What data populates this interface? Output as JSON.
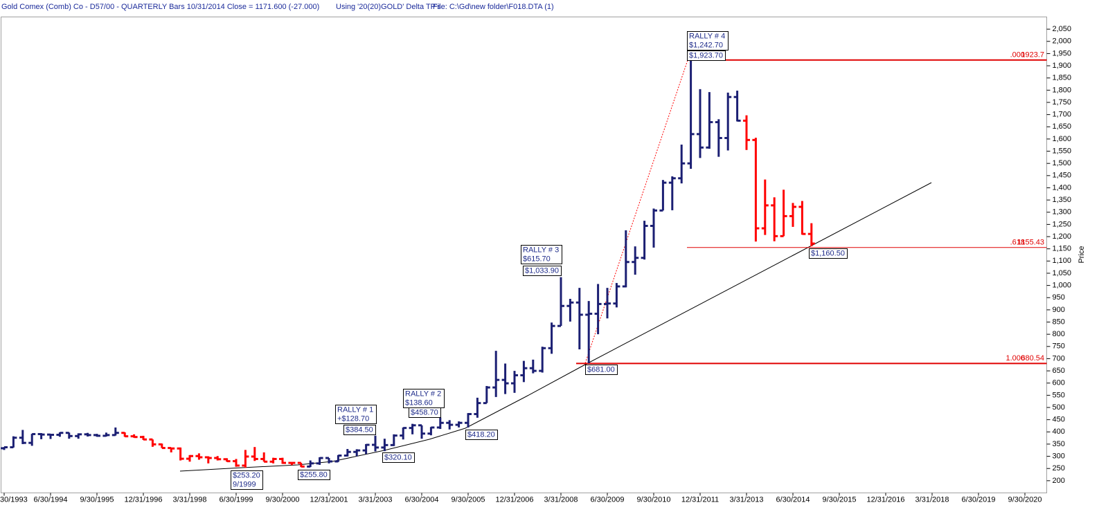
{
  "chart_data": {
    "type": "ohlc",
    "title": "Gold Comex (Comb) Co - D57/00  -  QUARTERLY Bars  10/31/2014 Close = 1171.600 (-27.000)",
    "subtitle": "Using '20(20)GOLD' Delta TP's",
    "file": "File: C:\\Gd\\new folder\\F018.DTA (1)",
    "y_label": "Price",
    "categories": [
      "30/1993",
      null,
      null,
      null,
      null,
      "6/30/1994",
      null,
      null,
      null,
      null,
      "9/30/1995",
      null,
      null,
      null,
      null,
      "12/31/1996",
      null,
      null,
      null,
      null,
      "3/31/1998",
      null,
      null,
      null,
      null,
      "6/30/1999",
      null,
      null,
      null,
      null,
      "9/30/2000",
      null,
      null,
      null,
      null,
      "12/31/2001",
      null,
      null,
      null,
      null,
      "3/31/2003",
      null,
      null,
      null,
      null,
      "6/30/2004",
      null,
      null,
      null,
      null,
      "9/30/2005",
      null,
      null,
      null,
      null,
      "12/31/2006",
      null,
      null,
      null,
      null,
      "3/31/2008",
      null,
      null,
      null,
      null,
      "6/30/2009",
      null,
      null,
      null,
      null,
      "9/30/2010",
      null,
      null,
      null,
      null,
      "12/31/2011",
      null,
      null,
      null,
      null,
      "3/31/2013",
      null,
      null,
      null,
      null,
      "6/30/2014",
      null,
      null,
      null,
      null,
      "9/30/2015",
      null,
      null,
      null,
      null,
      "12/31/2016",
      null,
      null,
      null,
      null,
      "3/31/2018",
      null,
      null,
      null,
      null,
      "6/30/2019",
      null,
      null,
      null,
      null,
      "9/30/2020"
    ],
    "open": [
      333,
      337,
      376,
      355,
      391,
      389,
      388,
      396,
      383,
      390,
      387,
      384,
      387,
      396,
      382,
      379,
      369,
      349,
      334,
      332,
      290,
      301,
      296,
      293,
      288,
      280,
      262,
      299,
      289,
      278,
      289,
      273,
      273,
      258,
      271,
      293,
      279,
      303,
      318,
      324,
      347,
      336,
      346,
      385,
      416,
      427,
      393,
      418,
      437,
      429,
      437,
      473,
      518,
      582,
      613,
      599,
      632,
      661,
      650,
      743,
      834,
      916,
      930,
      880,
      884,
      924,
      926,
      996,
      1096,
      1113,
      1244,
      1307,
      1421,
      1439,
      1500,
      1620,
      1565,
      1669,
      1604,
      1772,
      1675,
      1596,
      1234,
      1328,
      1202,
      1284,
      1322,
      1211,
      null,
      null,
      null,
      null,
      null,
      null,
      null,
      null,
      null,
      null,
      null,
      null,
      null,
      null,
      null,
      null,
      null,
      null,
      null,
      null,
      null,
      null,
      null
    ],
    "high": [
      338,
      382,
      408,
      392,
      395,
      391,
      398,
      397,
      394,
      396,
      392,
      397,
      418,
      398,
      390,
      384,
      369,
      352,
      335,
      336,
      305,
      312,
      300,
      301,
      292,
      289,
      326,
      338,
      316,
      294,
      294,
      275,
      273,
      283,
      296,
      293,
      305,
      330,
      329,
      350,
      384.5,
      372,
      390,
      418,
      433,
      427,
      420,
      458.7,
      448,
      443,
      477,
      540,
      588,
      732,
      680,
      650,
      691,
      696,
      749,
      848,
      1033.9,
      945,
      990,
      936,
      1006,
      990,
      1010,
      1226,
      1160,
      1265,
      1315,
      1432,
      1447,
      1577,
      1923.7,
      1804,
      1792,
      1681,
      1790,
      1798,
      1697,
      1605,
      1434,
      1361,
      1392,
      1338,
      1346,
      1255,
      null,
      null,
      null,
      null,
      null,
      null,
      null,
      null,
      null,
      null,
      null,
      null,
      null,
      null,
      null,
      null,
      null,
      null,
      null,
      null,
      null,
      null,
      null
    ],
    "low": [
      326,
      336,
      350,
      343,
      370,
      371,
      380,
      372,
      372,
      381,
      380,
      381,
      385,
      380,
      376,
      367,
      339,
      334,
      316,
      283,
      278,
      286,
      271,
      283,
      278,
      257,
      253.2,
      281,
      278,
      271,
      269,
      264,
      255.8,
      256,
      265,
      271,
      277,
      299,
      300,
      309,
      320.1,
      321,
      342,
      369,
      390,
      372,
      386,
      412,
      410,
      418.2,
      418,
      458,
      518,
      543,
      555,
      560,
      604,
      640,
      643,
      720,
      834,
      852,
      738,
      681,
      800,
      865,
      910,
      992,
      1044,
      1106,
      1155,
      1307,
      1308,
      1418,
      1478,
      1522,
      1560,
      1527,
      1553,
      1672,
      1555,
      1180,
      1207,
      1181,
      1202,
      1240,
      1208,
      1160.5,
      null,
      null,
      null,
      null,
      null,
      null,
      null,
      null,
      null,
      null,
      null,
      null,
      null,
      null,
      null,
      null,
      null,
      null,
      null,
      null,
      null,
      null,
      null
    ],
    "close": [
      337,
      376,
      355,
      391,
      389,
      388,
      396,
      383,
      390,
      387,
      384,
      387,
      396,
      382,
      379,
      369,
      349,
      334,
      332,
      290,
      301,
      296,
      293,
      288,
      280,
      262,
      299,
      289,
      278,
      289,
      273,
      273,
      258,
      271,
      293,
      279,
      303,
      318,
      324,
      347,
      336,
      346,
      385,
      416,
      427,
      393,
      418,
      437,
      429,
      437,
      473,
      518,
      582,
      613,
      599,
      632,
      661,
      650,
      743,
      834,
      916,
      930,
      880,
      884,
      924,
      926,
      996,
      1096,
      1113,
      1244,
      1307,
      1421,
      1439,
      1500,
      1620,
      1565,
      1669,
      1604,
      1772,
      1675,
      1596,
      1234,
      1328,
      1202,
      1284,
      1322,
      1211,
      1171.6,
      null,
      null,
      null,
      null,
      null,
      null,
      null,
      null,
      null,
      null,
      null,
      null,
      null,
      null,
      null,
      null,
      null,
      null,
      null,
      null,
      null,
      null,
      null
    ],
    "bar_colors": [
      "#1b1f73",
      "#1b1f73",
      "#1b1f73",
      "#1b1f73",
      "#1b1f73",
      "#1b1f73",
      "#1b1f73",
      "#1b1f73",
      "#1b1f73",
      "#1b1f73",
      "#1b1f73",
      "#1b1f73",
      "#1b1f73",
      "#ff0000",
      "#ff0000",
      "#ff0000",
      "#ff0000",
      "#ff0000",
      "#ff0000",
      "#ff0000",
      "#ff0000",
      "#ff0000",
      "#ff0000",
      "#ff0000",
      "#ff0000",
      "#ff0000",
      "#ff0000",
      "#ff0000",
      "#ff0000",
      "#ff0000",
      "#ff0000",
      "#ff0000",
      "#ff0000",
      "#1b1f73",
      "#1b1f73",
      "#1b1f73",
      "#1b1f73",
      "#1b1f73",
      "#1b1f73",
      "#1b1f73",
      "#1b1f73",
      "#1b1f73",
      "#1b1f73",
      "#1b1f73",
      "#1b1f73",
      "#1b1f73",
      "#1b1f73",
      "#1b1f73",
      "#1b1f73",
      "#1b1f73",
      "#1b1f73",
      "#1b1f73",
      "#1b1f73",
      "#1b1f73",
      "#1b1f73",
      "#1b1f73",
      "#1b1f73",
      "#1b1f73",
      "#1b1f73",
      "#1b1f73",
      "#1b1f73",
      "#1b1f73",
      "#1b1f73",
      "#1b1f73",
      "#1b1f73",
      "#1b1f73",
      "#1b1f73",
      "#1b1f73",
      "#1b1f73",
      "#1b1f73",
      "#1b1f73",
      "#1b1f73",
      "#1b1f73",
      "#1b1f73",
      "#1b1f73",
      "#1b1f73",
      "#1b1f73",
      "#1b1f73",
      "#1b1f73",
      "#1b1f73",
      "#ff0000",
      "#ff0000",
      "#ff0000",
      "#ff0000",
      "#ff0000",
      "#ff0000",
      "#ff0000",
      "#ff0000",
      null,
      null,
      null,
      null,
      null,
      null,
      null,
      null,
      null,
      null,
      null,
      null,
      null,
      null,
      null,
      null,
      null,
      null,
      null,
      null,
      null,
      null,
      null
    ],
    "ylim": [
      150,
      2100
    ],
    "yticks": [
      200,
      250,
      300,
      350,
      400,
      450,
      500,
      550,
      600,
      650,
      700,
      750,
      800,
      850,
      900,
      950,
      {
        "value": 1000,
        "label": "1,000"
      },
      {
        "value": 1050,
        "label": "1,050"
      },
      {
        "value": 1100,
        "label": "1,100"
      },
      {
        "value": 1150,
        "label": "1,150"
      },
      {
        "value": 1200,
        "label": "1,200"
      },
      {
        "value": 1250,
        "label": "1,250"
      },
      {
        "value": 1300,
        "label": "1,300"
      },
      {
        "value": 1350,
        "label": "1,350"
      },
      {
        "value": 1400,
        "label": "1,400"
      },
      {
        "value": 1450,
        "label": "1,450"
      },
      {
        "value": 1500,
        "label": "1,500"
      },
      {
        "value": 1550,
        "label": "1,550"
      },
      {
        "value": 1600,
        "label": "1,600"
      },
      {
        "value": 1650,
        "label": "1,650"
      },
      {
        "value": 1700,
        "label": "1,700"
      },
      {
        "value": 1750,
        "label": "1,750"
      },
      {
        "value": 1800,
        "label": "1,800"
      },
      {
        "value": 1850,
        "label": "1,850"
      },
      {
        "value": 1900,
        "label": "1,900"
      },
      {
        "value": 1950,
        "label": "1,950"
      },
      {
        "value": 2000,
        "label": "2,000"
      },
      {
        "value": 2050,
        "label": "2,050"
      }
    ],
    "fib_levels": [
      {
        "ratio": ".000",
        "value": 1923.7
      },
      {
        "ratio": ".618",
        "value": 1155.43
      },
      {
        "ratio": "1.000",
        "value": 680.54
      }
    ],
    "annotations": [
      [
        "RALLY # 1",
        "+$128.70"
      ],
      [
        "$384.50"
      ],
      [
        "$253.20",
        "9/1999"
      ],
      [
        "$255.80"
      ],
      [
        "$320.10"
      ],
      [
        "RALLY # 2",
        "$138.60"
      ],
      [
        "$458.70"
      ],
      [
        "$418.20"
      ],
      [
        "RALLY # 3",
        "$615.70"
      ],
      [
        "$1,033.90"
      ],
      [
        "$681.00"
      ],
      [
        "RALLY # 4",
        "$1,242.70"
      ],
      [
        "$1,923.70"
      ],
      [
        "$1,160.50"
      ]
    ]
  }
}
